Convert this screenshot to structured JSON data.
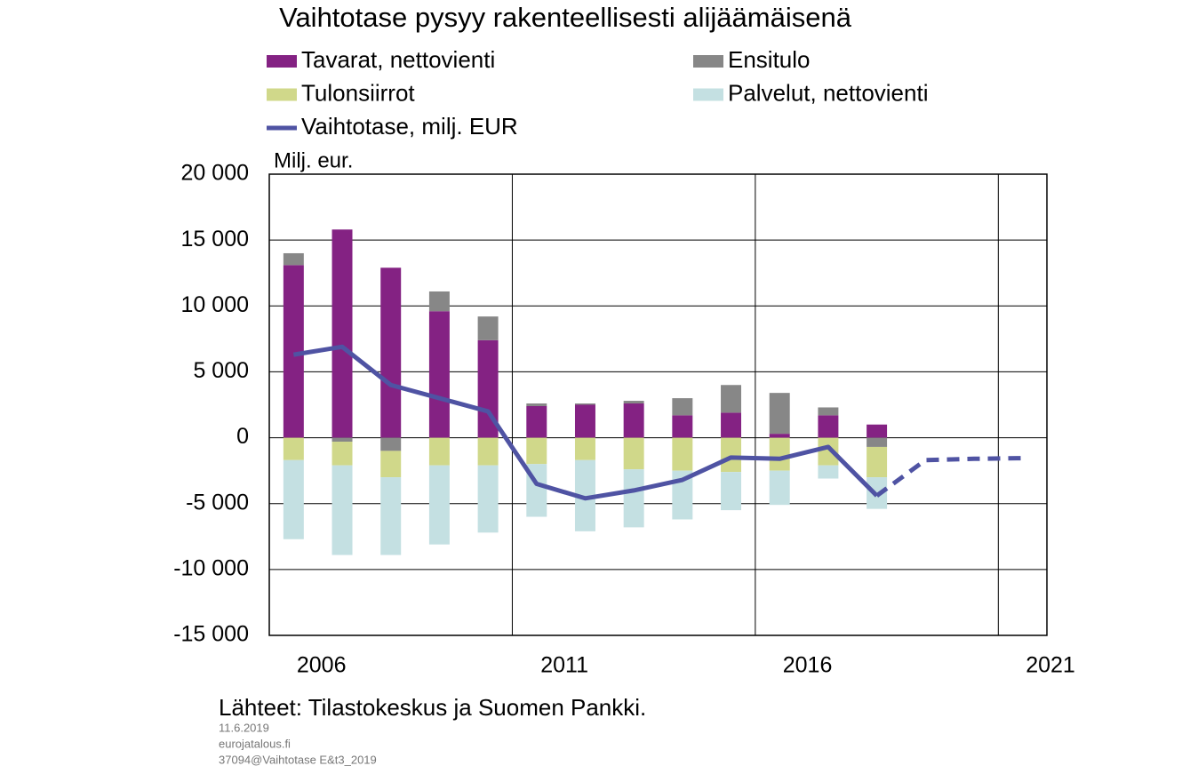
{
  "chart_data": {
    "type": "bar",
    "title": "Vaihtotase pysyy rakenteellisesti alijäämäisenä",
    "y_axis_label": "Milj. eur.",
    "source": "Lähteet: Tilastokeskus ja Suomen Pankki.",
    "footnotes": [
      "11.6.2019",
      "eurojatalous.fi",
      "37094@Vaihtotase E&t3_2019"
    ],
    "stacked": true,
    "categories": [
      "2006",
      null,
      null,
      null,
      null,
      "2011",
      null,
      null,
      null,
      null,
      "2016",
      null,
      null,
      null,
      null,
      "2021"
    ],
    "ylim": [
      -15000,
      20000
    ],
    "yticks": [
      {
        "value": -15000,
        "label": "-15 000"
      },
      {
        "value": -10000,
        "label": "-10 000"
      },
      {
        "value": -5000,
        "label": "-5 000"
      },
      0,
      {
        "value": 5000,
        "label": "5 000"
      },
      {
        "value": 10000,
        "label": "10 000"
      },
      {
        "value": 15000,
        "label": "15 000"
      },
      {
        "value": 20000,
        "label": "20 000"
      }
    ],
    "grid": true,
    "series": [
      {
        "name": "Tavarat, nettovienti",
        "type": "bar",
        "color": "#842283",
        "values": [
          13100,
          15800,
          12900,
          9600,
          7400,
          2400,
          2500,
          2600,
          1700,
          1900,
          300,
          1700,
          1000,
          null,
          null,
          null
        ]
      },
      {
        "name": "Ensitulo",
        "type": "bar",
        "color": "#878787",
        "values": [
          900,
          -300,
          -1000,
          1500,
          1800,
          200,
          100,
          200,
          1300,
          2100,
          3100,
          600,
          -700,
          null,
          null,
          null
        ]
      },
      {
        "name": "Tulonsiirrot",
        "type": "bar",
        "color": "#d0d88a",
        "values": [
          -1700,
          -1800,
          -2000,
          -2100,
          -2100,
          -2000,
          -1700,
          -2400,
          -2500,
          -2600,
          -2500,
          -2100,
          -2300,
          null,
          null,
          null
        ]
      },
      {
        "name": "Palvelut, nettovienti",
        "type": "bar",
        "color": "#c4e0e2",
        "values": [
          -6000,
          -6800,
          -5900,
          -6000,
          -5100,
          -4000,
          -5400,
          -4400,
          -3700,
          -2900,
          -2600,
          -1000,
          -2400,
          null,
          null,
          null
        ]
      },
      {
        "name": "Vaihtotase, milj. EUR",
        "type": "line",
        "color": "#4f53a3",
        "dashed_from": 12,
        "values": [
          6300,
          6900,
          4000,
          3000,
          2000,
          -3500,
          -4600,
          -4000,
          -3200,
          -1500,
          -1600,
          -700,
          -4400,
          -1700,
          -1600,
          -1550
        ]
      }
    ]
  }
}
